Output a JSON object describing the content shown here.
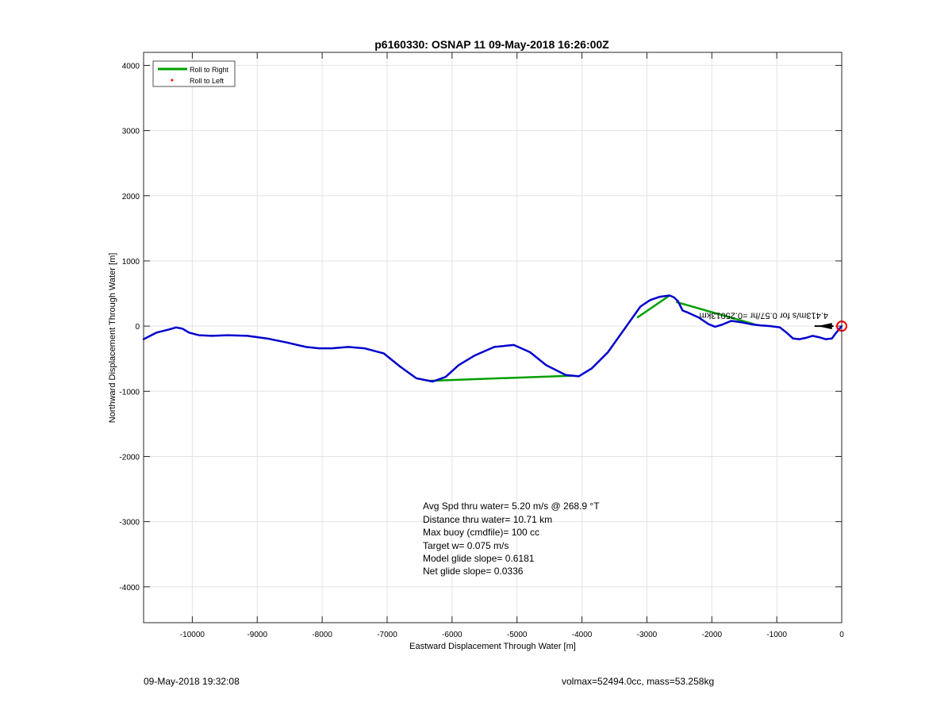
{
  "chart_data": {
    "type": "line",
    "title": "p6160330: OSNAP 11 09-May-2018 16:26:00Z",
    "xlabel": "Eastward Displacement Through Water [m]",
    "ylabel": "Northward Displacement Through Water [m]",
    "xlim": [
      -10750,
      0
    ],
    "ylim": [
      -4550,
      4200
    ],
    "xticks": [
      -10000,
      -9000,
      -8000,
      -7000,
      -6000,
      -5000,
      -4000,
      -3000,
      -2000,
      -1000,
      0
    ],
    "yticks": [
      -4000,
      -3000,
      -2000,
      -1000,
      0,
      1000,
      2000,
      3000,
      4000
    ],
    "grid": true,
    "legend_position": "top-left",
    "legend": [
      {
        "label": "Roll to Right",
        "color": "#00a000",
        "style": "line"
      },
      {
        "label": "Roll to Left",
        "color": "#ff0000",
        "style": "dot"
      }
    ],
    "series": [
      {
        "color": "#0000cc",
        "x": [
          -10750,
          -10550,
          -10350,
          -10250,
          -10150,
          -10050,
          -9900,
          -9700,
          -9450,
          -9150,
          -8850,
          -8550,
          -8250,
          -8050,
          -7850,
          -7600,
          -7350,
          -7050,
          -6800,
          -6550,
          -6300,
          -6100,
          -5900,
          -5650,
          -5350,
          -5050,
          -4800,
          -4550,
          -4250,
          -4050,
          -3850,
          -3600,
          -3350,
          -3100,
          -2950,
          -2800,
          -2650,
          -2580,
          -2520,
          -2450,
          -2350,
          -2200,
          -2050,
          -1950,
          -1850,
          -1700,
          -1550,
          -1400,
          -1250,
          -1100,
          -950,
          -850,
          -750,
          -650,
          -550,
          -450,
          -350,
          -250,
          -150,
          -100,
          -50,
          0
        ],
        "y": [
          -200,
          -100,
          -50,
          -20,
          -40,
          -100,
          -140,
          -150,
          -140,
          -150,
          -190,
          -250,
          -320,
          -340,
          -340,
          -320,
          -340,
          -420,
          -620,
          -800,
          -850,
          -780,
          -600,
          -450,
          -320,
          -290,
          -400,
          -600,
          -750,
          -770,
          -650,
          -400,
          -50,
          300,
          400,
          450,
          470,
          440,
          380,
          240,
          200,
          130,
          30,
          -10,
          20,
          80,
          60,
          30,
          10,
          0,
          -20,
          -100,
          -190,
          -200,
          -180,
          -150,
          -170,
          -200,
          -190,
          -120,
          -60,
          0
        ]
      }
    ],
    "roll_right_segments": [
      {
        "x": [
          -6350,
          -4150
        ],
        "y": [
          -840,
          -760
        ]
      },
      {
        "x": [
          -3150,
          -2650
        ],
        "y": [
          130,
          470
        ]
      },
      {
        "x": [
          -2550,
          -1350
        ],
        "y": [
          370,
          30
        ]
      }
    ],
    "markers": [
      {
        "type": "circle",
        "color": "#ff0000",
        "x": 0,
        "y": 0
      }
    ],
    "annotations": [
      {
        "text": "4.413m/s for 0.57/hr =0.25013km",
        "color": "#000000",
        "x": -1200,
        "y": 200,
        "rotation_deg": 180
      }
    ]
  },
  "stats": [
    "Avg Spd thru water=  5.20 m/s @ 268.9 °T",
    "Distance thru water= 10.71 km",
    "Max buoy (cmdfile)= 100 cc",
    "Target w= 0.075 m/s",
    "Model glide slope= 0.6181",
    "Net glide slope= 0.0336"
  ],
  "footer": {
    "timestamp": "09-May-2018 19:32:08",
    "mass_info": "volmax=52494.0cc, mass=53.258kg"
  }
}
